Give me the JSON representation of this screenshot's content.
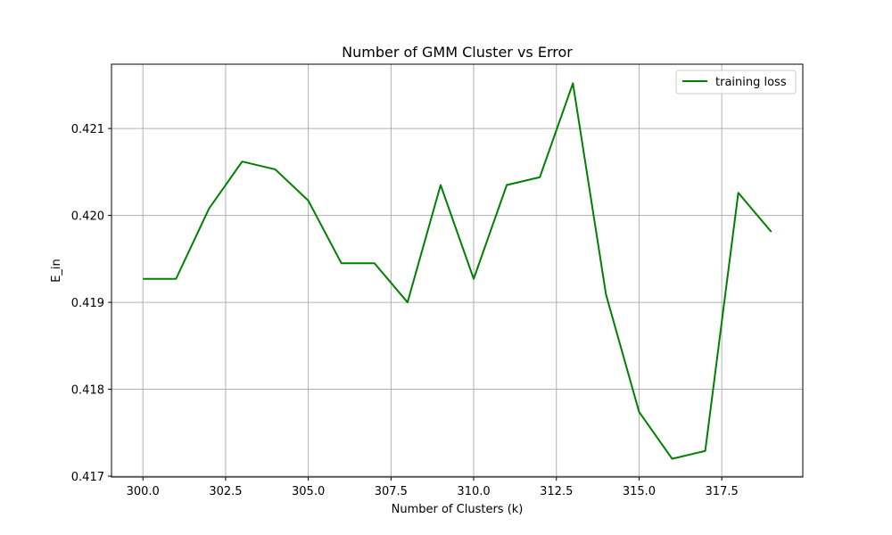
{
  "chart_data": {
    "type": "line",
    "title": "Number of GMM Cluster vs Error",
    "xlabel": "Number of Clusters (k)",
    "ylabel": "E_in",
    "xlim": [
      299.05,
      319.95
    ],
    "ylim": [
      0.41699,
      0.42174
    ],
    "grid": true,
    "legend_position": "top-right",
    "x_ticks": [
      {
        "value": 300.0,
        "label": "300.0"
      },
      {
        "value": 302.5,
        "label": "302.5"
      },
      {
        "value": 305.0,
        "label": "305.0"
      },
      {
        "value": 307.5,
        "label": "307.5"
      },
      {
        "value": 310.0,
        "label": "310.0"
      },
      {
        "value": 312.5,
        "label": "312.5"
      },
      {
        "value": 315.0,
        "label": "315.0"
      },
      {
        "value": 317.5,
        "label": "317.5"
      }
    ],
    "y_ticks": [
      {
        "value": 0.417,
        "label": "0.417"
      },
      {
        "value": 0.418,
        "label": "0.418"
      },
      {
        "value": 0.419,
        "label": "0.419"
      },
      {
        "value": 0.42,
        "label": "0.420"
      },
      {
        "value": 0.421,
        "label": "0.421"
      }
    ],
    "x": [
      300,
      301,
      302,
      303,
      304,
      305,
      306,
      307,
      308,
      309,
      310,
      311,
      312,
      313,
      314,
      315,
      316,
      317,
      318,
      319
    ],
    "series": [
      {
        "name": "training loss",
        "color": "#008000",
        "values": [
          0.41927,
          0.41927,
          0.42008,
          0.42062,
          0.42053,
          0.42017,
          0.41945,
          0.41945,
          0.419,
          0.42035,
          0.41927,
          0.42035,
          0.42044,
          0.42152,
          0.41909,
          0.41774,
          0.4172,
          0.41729,
          0.42026,
          0.41981
        ]
      }
    ]
  }
}
